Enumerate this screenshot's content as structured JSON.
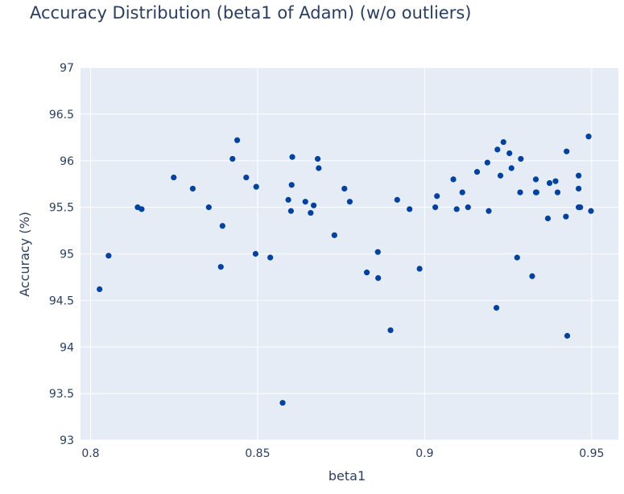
{
  "chart_data": {
    "type": "scatter",
    "title": "Accuracy Distribution (beta1 of Adam) (w/o outliers)",
    "xlabel": "beta1",
    "ylabel": "Accuracy (%)",
    "xlim": [
      0.797,
      0.958
    ],
    "ylim": [
      93,
      97
    ],
    "xticks": [
      {
        "value": 0.8,
        "label": "0.8"
      },
      {
        "value": 0.85,
        "label": "0.85"
      },
      {
        "value": 0.9,
        "label": "0.9"
      },
      {
        "value": 0.95,
        "label": "0.95"
      }
    ],
    "yticks": [
      {
        "value": 93,
        "label": "93"
      },
      {
        "value": 93.5,
        "label": "93.5"
      },
      {
        "value": 94,
        "label": "94"
      },
      {
        "value": 94.5,
        "label": "94.5"
      },
      {
        "value": 95,
        "label": "95"
      },
      {
        "value": 95.5,
        "label": "95.5"
      },
      {
        "value": 96,
        "label": "96"
      },
      {
        "value": 96.5,
        "label": "96.5"
      },
      {
        "value": 97,
        "label": "97"
      }
    ],
    "grid": true,
    "background_color": "#e5ecf6",
    "grid_color": "#ffffff",
    "marker_color": "#00429d",
    "series": [
      {
        "x": [
          0.8027,
          0.8054,
          0.8141,
          0.8153,
          0.8249,
          0.8306,
          0.8354,
          0.839,
          0.8395,
          0.8425,
          0.8439,
          0.8466,
          0.8494,
          0.8496,
          0.8538,
          0.8575,
          0.8592,
          0.86,
          0.8602,
          0.8604,
          0.8643,
          0.8659,
          0.8668,
          0.868,
          0.8683,
          0.873,
          0.876,
          0.8776,
          0.8827,
          0.886,
          0.8861,
          0.8898,
          0.8918,
          0.8955,
          0.8985,
          0.9032,
          0.9037,
          0.9086,
          0.9096,
          0.9113,
          0.913,
          0.9157,
          0.9188,
          0.9192,
          0.9215,
          0.9218,
          0.9227,
          0.9236,
          0.9254,
          0.926,
          0.9277,
          0.9286,
          0.9288,
          0.9322,
          0.9333,
          0.9335,
          0.9333,
          0.9369,
          0.9374,
          0.9392,
          0.9398,
          0.9423,
          0.9425,
          0.9427,
          0.9461,
          0.9461,
          0.9461,
          0.9466,
          0.9491,
          0.9498
        ],
        "y": [
          94.62,
          94.98,
          95.5,
          95.48,
          95.82,
          95.7,
          95.5,
          94.86,
          95.3,
          96.02,
          96.22,
          95.82,
          95.0,
          95.72,
          94.96,
          93.4,
          95.58,
          95.46,
          95.74,
          96.04,
          95.56,
          95.44,
          95.52,
          96.02,
          95.92,
          95.2,
          95.7,
          95.56,
          94.8,
          95.02,
          94.74,
          94.18,
          95.58,
          95.48,
          94.84,
          95.5,
          95.62,
          95.8,
          95.48,
          95.66,
          95.5,
          95.88,
          95.98,
          95.46,
          94.42,
          96.12,
          95.84,
          96.2,
          96.08,
          95.92,
          94.96,
          95.66,
          96.02,
          94.76,
          95.8,
          95.66,
          95.66,
          95.38,
          95.76,
          95.78,
          95.66,
          95.4,
          96.1,
          94.12,
          95.84,
          95.7,
          95.5,
          95.5,
          96.26,
          95.46
        ]
      }
    ]
  }
}
